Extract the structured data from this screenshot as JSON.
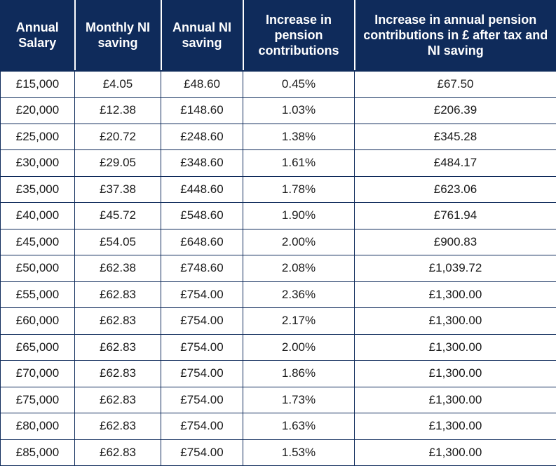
{
  "table": {
    "headers": [
      "Annual Salary",
      "Monthly NI saving",
      "Annual NI saving",
      "Increase in pension contributions",
      "Increase in annual pension contributions in £ after tax and NI saving"
    ],
    "rows": [
      [
        "£15,000",
        "£4.05",
        "£48.60",
        "0.45%",
        "£67.50"
      ],
      [
        "£20,000",
        "£12.38",
        "£148.60",
        "1.03%",
        "£206.39"
      ],
      [
        "£25,000",
        "£20.72",
        "£248.60",
        "1.38%",
        "£345.28"
      ],
      [
        "£30,000",
        "£29.05",
        "£348.60",
        "1.61%",
        "£484.17"
      ],
      [
        "£35,000",
        "£37.38",
        "£448.60",
        "1.78%",
        "£623.06"
      ],
      [
        "£40,000",
        "£45.72",
        "£548.60",
        "1.90%",
        "£761.94"
      ],
      [
        "£45,000",
        "£54.05",
        "£648.60",
        "2.00%",
        "£900.83"
      ],
      [
        "£50,000",
        "£62.38",
        "£748.60",
        "2.08%",
        "£1,039.72"
      ],
      [
        "£55,000",
        "£62.83",
        "£754.00",
        "2.36%",
        "£1,300.00"
      ],
      [
        "£60,000",
        "£62.83",
        "£754.00",
        "2.17%",
        "£1,300.00"
      ],
      [
        "£65,000",
        "£62.83",
        "£754.00",
        "2.00%",
        "£1,300.00"
      ],
      [
        "£70,000",
        "£62.83",
        "£754.00",
        "1.86%",
        "£1,300.00"
      ],
      [
        "£75,000",
        "£62.83",
        "£754.00",
        "1.73%",
        "£1,300.00"
      ],
      [
        "£80,000",
        "£62.83",
        "£754.00",
        "1.63%",
        "£1,300.00"
      ],
      [
        "£85,000",
        "£62.83",
        "£754.00",
        "1.53%",
        "£1,300.00"
      ]
    ]
  },
  "colors": {
    "header_bg": "#0f2b5b",
    "header_text": "#ffffff",
    "border": "#0f2b5b"
  }
}
